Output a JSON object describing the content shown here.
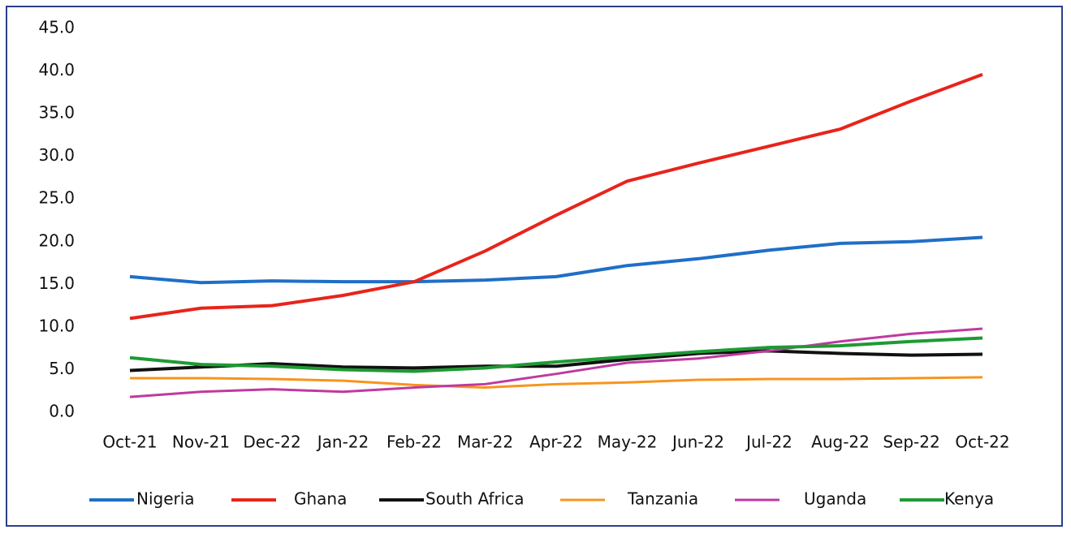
{
  "chart_data": {
    "type": "line",
    "categories": [
      "Oct-21",
      "Nov-21",
      "Dec-22",
      "Jan-22",
      "Feb-22",
      "Mar-22",
      "Apr-22",
      "May-22",
      "Jun-22",
      "Jul-22",
      "Aug-22",
      "Sep-22",
      "Oct-22"
    ],
    "series": [
      {
        "name": "Nigeria",
        "color": "#1f6fc6",
        "values": [
          15.9,
          15.2,
          15.4,
          15.3,
          15.3,
          15.5,
          15.9,
          17.2,
          18.0,
          19.0,
          19.8,
          20.0,
          20.5
        ]
      },
      {
        "name": "Ghana",
        "color": "#e8241b",
        "values": [
          11.0,
          12.2,
          12.5,
          13.7,
          15.3,
          18.9,
          23.1,
          27.1,
          29.2,
          31.2,
          33.2,
          36.5,
          39.6
        ]
      },
      {
        "name": "South Africa",
        "color": "#111111",
        "values": [
          4.9,
          5.3,
          5.7,
          5.3,
          5.2,
          5.4,
          5.4,
          6.2,
          6.9,
          7.2,
          6.9,
          6.7,
          6.8
        ]
      },
      {
        "name": "Tanzania",
        "color": "#f7941d",
        "values": [
          4.0,
          4.0,
          3.9,
          3.7,
          3.2,
          2.9,
          3.3,
          3.5,
          3.8,
          3.9,
          3.9,
          4.0,
          4.1
        ]
      },
      {
        "name": "Uganda",
        "color": "#c0399f",
        "values": [
          1.8,
          2.4,
          2.7,
          2.4,
          2.9,
          3.3,
          4.5,
          5.8,
          6.3,
          7.2,
          8.3,
          9.2,
          9.8
        ]
      },
      {
        "name": "Kenya",
        "color": "#1e9a34",
        "values": [
          6.4,
          5.6,
          5.4,
          5.0,
          4.8,
          5.2,
          5.9,
          6.5,
          7.1,
          7.6,
          7.8,
          8.3,
          8.7
        ]
      }
    ],
    "ylim": [
      0,
      45
    ],
    "yticks": [
      {
        "value": 0,
        "label": "0.0"
      },
      {
        "value": 5,
        "label": "5.0"
      },
      {
        "value": 10,
        "label": "10.0"
      },
      {
        "value": 15,
        "label": "15.0"
      },
      {
        "value": 20,
        "label": "20.0"
      },
      {
        "value": 25,
        "label": "25.0"
      },
      {
        "value": 30,
        "label": "30.0"
      },
      {
        "value": 35,
        "label": "35.0"
      },
      {
        "value": 40,
        "label": "40.0"
      },
      {
        "value": 45,
        "label": "45.0"
      }
    ],
    "grid": false,
    "legend": "bottom"
  }
}
